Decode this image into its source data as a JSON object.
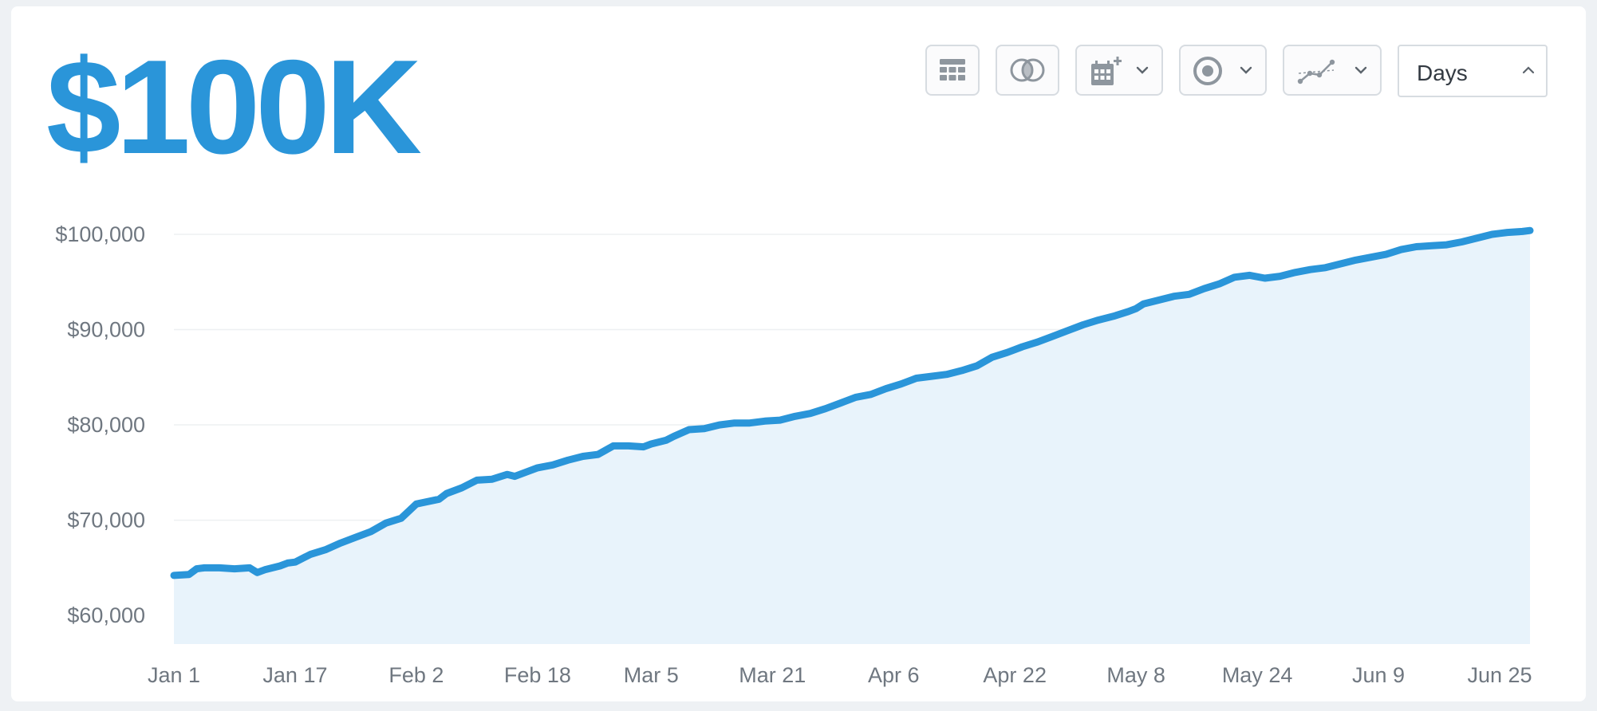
{
  "headline": {
    "value": "$100K"
  },
  "toolbar": {
    "icons": [
      "table-grid-icon",
      "compare-circles-icon",
      "calendar-add-icon",
      "target-icon",
      "trendline-icon"
    ],
    "period_select": {
      "selected": "Days"
    }
  },
  "colors": {
    "accent": "#2a95d9",
    "fill": "#e8f3fb",
    "grid": "#eef0f2",
    "tick": "#6f7780"
  },
  "chart_data": {
    "type": "area",
    "title": "",
    "xlabel": "",
    "ylabel": "",
    "grid": true,
    "ylim": [
      57000,
      100500
    ],
    "y_ticks": [
      60000,
      70000,
      80000,
      90000,
      100000
    ],
    "y_tick_labels": [
      "$60,000",
      "$70,000",
      "$80,000",
      "$90,000",
      "$100,000"
    ],
    "x_tick_labels": [
      "Jan 1",
      "Jan 17",
      "Feb 2",
      "Feb 18",
      "Mar 5",
      "Mar 21",
      "Apr 6",
      "Apr 22",
      "May 8",
      "May 24",
      "Jun 9",
      "Jun 25"
    ],
    "x_tick_day_index": [
      0,
      16,
      32,
      48,
      63,
      79,
      95,
      111,
      127,
      143,
      159,
      175
    ],
    "series": [
      {
        "day_index": [
          0,
          2,
          3,
          4,
          6,
          8,
          10,
          11,
          12,
          14,
          15,
          16,
          18,
          20,
          22,
          24,
          26,
          28,
          30,
          32,
          35,
          36,
          38,
          40,
          42,
          44,
          45,
          47,
          48,
          50,
          52,
          54,
          56,
          58,
          60,
          62,
          63,
          65,
          66,
          68,
          70,
          72,
          74,
          76,
          78,
          80,
          82,
          84,
          86,
          88,
          90,
          92,
          94,
          96,
          98,
          100,
          102,
          104,
          106,
          108,
          110,
          112,
          114,
          116,
          118,
          120,
          122,
          124,
          126,
          127,
          128,
          130,
          132,
          134,
          136,
          138,
          140,
          142,
          144,
          146,
          148,
          150,
          152,
          154,
          156,
          158,
          160,
          162,
          164,
          166,
          168,
          170,
          172,
          174,
          175,
          176,
          178,
          179
        ],
        "values": [
          64200,
          64300,
          64900,
          65000,
          65000,
          64900,
          65000,
          64500,
          64800,
          65200,
          65500,
          65600,
          66400,
          66900,
          67600,
          68200,
          68800,
          69700,
          70200,
          71700,
          72200,
          72800,
          73400,
          74200,
          74300,
          74800,
          74600,
          75200,
          75500,
          75800,
          76300,
          76700,
          76900,
          77800,
          77800,
          77700,
          78000,
          78400,
          78800,
          79500,
          79600,
          80000,
          80200,
          80200,
          80400,
          80500,
          80900,
          81200,
          81700,
          82300,
          82900,
          83200,
          83800,
          84300,
          84900,
          85100,
          85300,
          85700,
          86200,
          87100,
          87600,
          88200,
          88700,
          89300,
          89900,
          90500,
          91000,
          91400,
          91900,
          92200,
          92700,
          93100,
          93500,
          93700,
          94300,
          94800,
          95500,
          95700,
          95400,
          95600,
          96000,
          96300,
          96500,
          96900,
          97300,
          97600,
          97900,
          98400,
          98700,
          98800,
          98900,
          99200,
          99600,
          100000,
          100100,
          100200,
          100300,
          100400
        ]
      }
    ]
  }
}
